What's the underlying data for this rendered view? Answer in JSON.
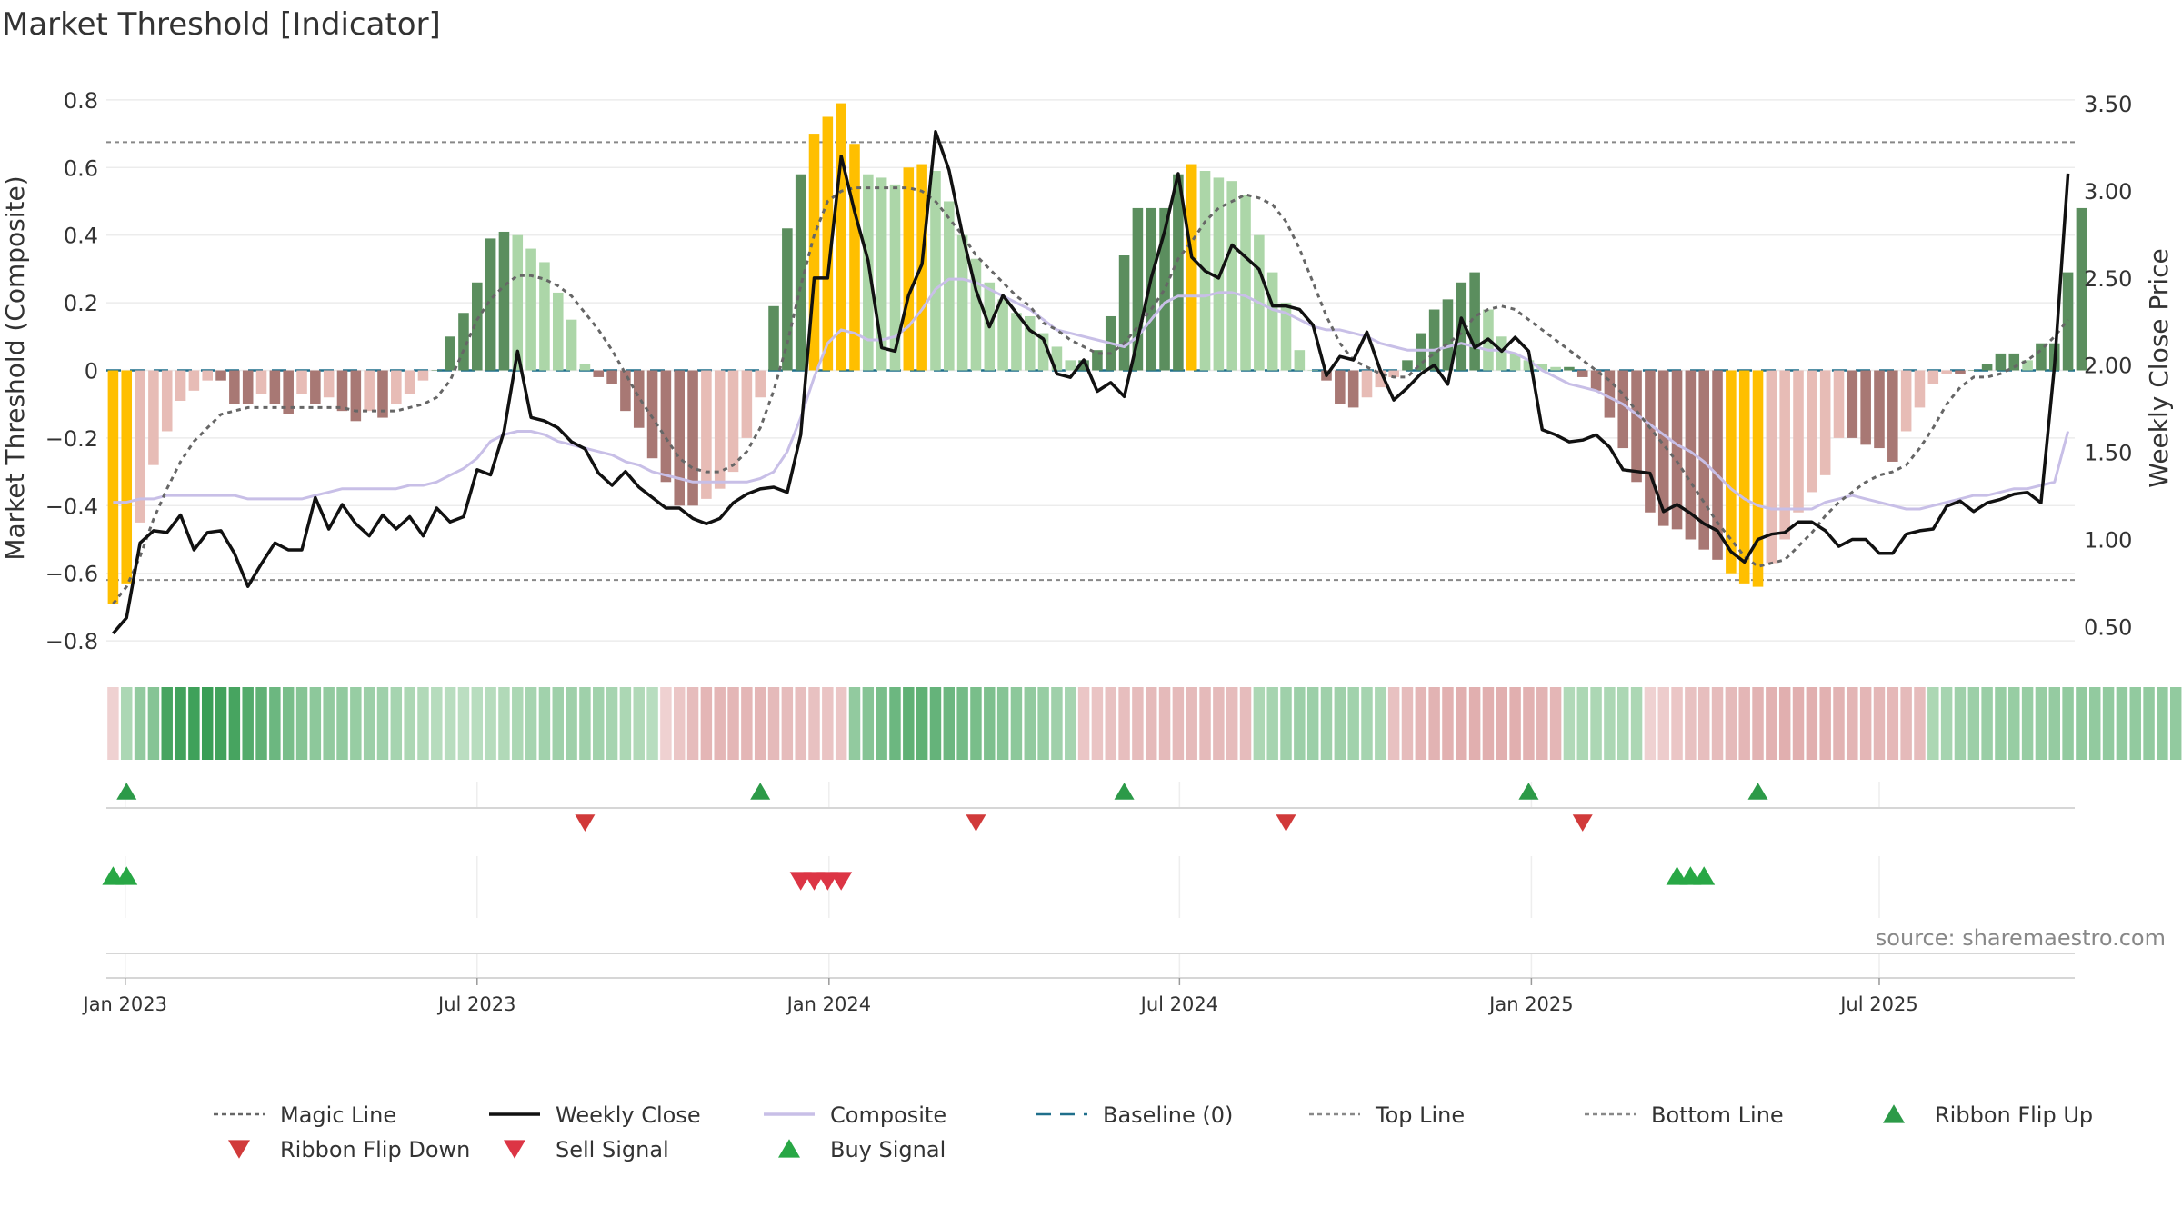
{
  "chart_data": {
    "type": "bar",
    "title": "Market Threshold [Indicator]",
    "ylabel": "Market Threshold (Composite)",
    "y2label": "Weekly Close Price",
    "ylim": [
      -0.84,
      0.84
    ],
    "y2lim": [
      0.34,
      3.6
    ],
    "yticks": [
      0.8,
      0.6,
      0.4,
      0.2,
      0,
      -0.2,
      -0.4,
      -0.6,
      -0.8
    ],
    "ytick_labels": [
      "0.8",
      "0.6",
      "0.4",
      "0.2",
      "0",
      "−0.2",
      "−0.4",
      "−0.6",
      "−0.8"
    ],
    "y2ticks": [
      3.5,
      3.0,
      2.5,
      2.0,
      1.5,
      1.0,
      0.5
    ],
    "y2tick_labels": [
      "3.50",
      "3.00",
      "2.50",
      "2.00",
      "1.50",
      "1.00",
      "0.50"
    ],
    "date_axis": {
      "start": "Dec 2022",
      "weeks": 146,
      "ticks": [
        {
          "week": 1.4,
          "label": "Jan 2023"
        },
        {
          "week": 27.5,
          "label": "Jul 2023"
        },
        {
          "week": 53.6,
          "label": "Jan 2024"
        },
        {
          "week": 79.6,
          "label": "Jul 2024"
        },
        {
          "week": 105.7,
          "label": "Jan 2025"
        },
        {
          "week": 131.5,
          "label": "Jul 2025"
        }
      ]
    },
    "reference_lines": {
      "baseline": 0,
      "top_line": 0.675,
      "bottom_line": -0.62
    },
    "bars": {
      "values": [
        -0.69,
        -0.63,
        -0.45,
        -0.28,
        -0.18,
        -0.09,
        -0.06,
        -0.03,
        -0.03,
        -0.1,
        -0.1,
        -0.07,
        -0.1,
        -0.13,
        -0.07,
        -0.1,
        -0.08,
        -0.12,
        -0.15,
        -0.12,
        -0.14,
        -0.1,
        -0.07,
        -0.03,
        0,
        0.1,
        0.17,
        0.26,
        0.39,
        0.41,
        0.4,
        0.36,
        0.32,
        0.23,
        0.15,
        0.02,
        -0.02,
        -0.04,
        -0.12,
        -0.17,
        -0.26,
        -0.33,
        -0.4,
        -0.4,
        -0.38,
        -0.35,
        -0.3,
        -0.2,
        -0.08,
        0.19,
        0.42,
        0.58,
        0.7,
        0.75,
        0.79,
        0.67,
        0.58,
        0.57,
        0.55,
        0.6,
        0.61,
        0.59,
        0.5,
        0.4,
        0.33,
        0.26,
        0.21,
        0.17,
        0.16,
        0.11,
        0.07,
        0.03,
        0.03,
        0.06,
        0.16,
        0.34,
        0.48,
        0.48,
        0.48,
        0.58,
        0.61,
        0.59,
        0.57,
        0.56,
        0.52,
        0.4,
        0.29,
        0.2,
        0.06,
        0.0,
        -0.03,
        -0.1,
        -0.11,
        -0.08,
        -0.05,
        -0.02,
        0.03,
        0.11,
        0.18,
        0.21,
        0.26,
        0.29,
        0.18,
        0.1,
        0.05,
        0.03,
        0.02,
        0.01,
        0.01,
        -0.02,
        -0.06,
        -0.14,
        -0.23,
        -0.33,
        -0.42,
        -0.46,
        -0.47,
        -0.5,
        -0.53,
        -0.56,
        -0.6,
        -0.63,
        -0.64,
        -0.57,
        -0.5,
        -0.42,
        -0.36,
        -0.31,
        -0.2,
        -0.2,
        -0.22,
        -0.23,
        -0.27,
        -0.18,
        -0.11,
        -0.04,
        -0.01,
        -0.01,
        0.0,
        0.02,
        0.05,
        0.05,
        0.03,
        0.08,
        0.08,
        0.29,
        0.48
      ],
      "colors": {
        "strong_positive": "#5b8e5e",
        "weak_positive": "#acd6a8",
        "strong_negative": "#a87874",
        "weak_negative": "#e7bcb6",
        "extreme": "#ffbf00"
      }
    },
    "series": [
      {
        "name": "Weekly Close",
        "axis": "right",
        "color": "#111111",
        "values": [
          0.46,
          0.55,
          0.98,
          1.05,
          1.04,
          1.14,
          0.94,
          1.04,
          1.05,
          0.92,
          0.73,
          0.86,
          0.98,
          0.94,
          0.94,
          1.24,
          1.06,
          1.2,
          1.09,
          1.02,
          1.14,
          1.06,
          1.13,
          1.02,
          1.18,
          1.1,
          1.13,
          1.4,
          1.37,
          1.62,
          2.08,
          1.7,
          1.68,
          1.64,
          1.56,
          1.52,
          1.38,
          1.31,
          1.39,
          1.3,
          1.24,
          1.18,
          1.18,
          1.12,
          1.09,
          1.12,
          1.21,
          1.26,
          1.29,
          1.3,
          1.27,
          1.6,
          2.5,
          2.5,
          3.2,
          2.88,
          2.6,
          2.1,
          2.08,
          2.4,
          2.58,
          3.34,
          3.12,
          2.75,
          2.43,
          2.22,
          2.4,
          2.3,
          2.2,
          2.15,
          1.95,
          1.93,
          2.03,
          1.85,
          1.9,
          1.82,
          2.15,
          2.5,
          2.77,
          3.1,
          2.62,
          2.54,
          2.5,
          2.69,
          2.62,
          2.55,
          2.34,
          2.34,
          2.32,
          2.23,
          1.94,
          2.05,
          2.03,
          2.19,
          1.97,
          1.8,
          1.87,
          1.95,
          2.0,
          1.89,
          2.27,
          2.1,
          2.15,
          2.08,
          2.16,
          2.08,
          1.63,
          1.6,
          1.56,
          1.57,
          1.6,
          1.53,
          1.4,
          1.39,
          1.38,
          1.16,
          1.2,
          1.15,
          1.09,
          1.05,
          0.93,
          0.87,
          1.0,
          1.03,
          1.04,
          1.1,
          1.1,
          1.05,
          0.96,
          1.0,
          1.0,
          0.92,
          0.92,
          1.03,
          1.05,
          1.06,
          1.19,
          1.22,
          1.16,
          1.21,
          1.23,
          1.26,
          1.27,
          1.21,
          2.0,
          3.1
        ]
      },
      {
        "name": "Composite",
        "axis": "left",
        "color": "#c8bfe7",
        "values": [
          -0.39,
          -0.39,
          -0.38,
          -0.38,
          -0.37,
          -0.37,
          -0.37,
          -0.37,
          -0.37,
          -0.37,
          -0.38,
          -0.38,
          -0.38,
          -0.38,
          -0.38,
          -0.37,
          -0.36,
          -0.35,
          -0.35,
          -0.35,
          -0.35,
          -0.35,
          -0.34,
          -0.34,
          -0.33,
          -0.31,
          -0.29,
          -0.26,
          -0.21,
          -0.19,
          -0.18,
          -0.18,
          -0.19,
          -0.21,
          -0.22,
          -0.23,
          -0.24,
          -0.25,
          -0.27,
          -0.28,
          -0.3,
          -0.31,
          -0.32,
          -0.33,
          -0.33,
          -0.33,
          -0.33,
          -0.33,
          -0.32,
          -0.3,
          -0.24,
          -0.14,
          -0.02,
          0.08,
          0.12,
          0.11,
          0.09,
          0.09,
          0.1,
          0.13,
          0.18,
          0.24,
          0.27,
          0.27,
          0.26,
          0.24,
          0.22,
          0.2,
          0.18,
          0.15,
          0.12,
          0.11,
          0.1,
          0.09,
          0.08,
          0.07,
          0.1,
          0.15,
          0.2,
          0.22,
          0.22,
          0.22,
          0.23,
          0.23,
          0.22,
          0.2,
          0.18,
          0.17,
          0.15,
          0.13,
          0.12,
          0.12,
          0.11,
          0.1,
          0.08,
          0.07,
          0.06,
          0.06,
          0.06,
          0.07,
          0.08,
          0.07,
          0.06,
          0.06,
          0.05,
          0.03,
          0.0,
          -0.02,
          -0.04,
          -0.05,
          -0.06,
          -0.08,
          -0.1,
          -0.13,
          -0.16,
          -0.19,
          -0.22,
          -0.24,
          -0.27,
          -0.31,
          -0.35,
          -0.38,
          -0.4,
          -0.41,
          -0.41,
          -0.41,
          -0.41,
          -0.39,
          -0.38,
          -0.37,
          -0.38,
          -0.39,
          -0.4,
          -0.41,
          -0.41,
          -0.4,
          -0.39,
          -0.38,
          -0.37,
          -0.37,
          -0.36,
          -0.35,
          -0.35,
          -0.34,
          -0.33,
          -0.18
        ]
      },
      {
        "name": "Magic Line",
        "axis": "left",
        "color": "#666666",
        "values": [
          -0.69,
          -0.64,
          -0.55,
          -0.44,
          -0.35,
          -0.27,
          -0.21,
          -0.17,
          -0.13,
          -0.12,
          -0.11,
          -0.11,
          -0.11,
          -0.11,
          -0.11,
          -0.11,
          -0.11,
          -0.11,
          -0.12,
          -0.12,
          -0.12,
          -0.12,
          -0.11,
          -0.1,
          -0.08,
          -0.03,
          0.06,
          0.15,
          0.21,
          0.25,
          0.28,
          0.28,
          0.27,
          0.25,
          0.22,
          0.17,
          0.12,
          0.06,
          -0.01,
          -0.08,
          -0.14,
          -0.2,
          -0.26,
          -0.29,
          -0.3,
          -0.3,
          -0.28,
          -0.24,
          -0.17,
          -0.06,
          0.08,
          0.25,
          0.4,
          0.5,
          0.53,
          0.54,
          0.54,
          0.54,
          0.54,
          0.54,
          0.53,
          0.5,
          0.45,
          0.4,
          0.34,
          0.3,
          0.26,
          0.22,
          0.19,
          0.14,
          0.12,
          0.09,
          0.07,
          0.05,
          0.05,
          0.08,
          0.13,
          0.18,
          0.24,
          0.33,
          0.38,
          0.44,
          0.48,
          0.5,
          0.52,
          0.51,
          0.49,
          0.44,
          0.36,
          0.26,
          0.16,
          0.08,
          0.03,
          0.01,
          -0.01,
          -0.02,
          -0.02,
          0.02,
          0.05,
          0.08,
          0.11,
          0.16,
          0.18,
          0.19,
          0.18,
          0.15,
          0.12,
          0.09,
          0.06,
          0.03,
          0.0,
          -0.03,
          -0.07,
          -0.12,
          -0.17,
          -0.22,
          -0.27,
          -0.33,
          -0.39,
          -0.45,
          -0.5,
          -0.55,
          -0.58,
          -0.57,
          -0.56,
          -0.52,
          -0.48,
          -0.43,
          -0.39,
          -0.36,
          -0.33,
          -0.31,
          -0.3,
          -0.28,
          -0.23,
          -0.17,
          -0.1,
          -0.05,
          -0.02,
          -0.02,
          -0.01,
          0.01,
          0.03,
          0.06,
          0.1,
          0.15
        ]
      }
    ],
    "ribbon": {
      "label": "Ribbon",
      "values": [
        -0.1,
        0.2,
        0.3,
        0.35,
        0.6,
        0.62,
        0.63,
        0.65,
        0.62,
        0.6,
        0.55,
        0.5,
        0.45,
        0.4,
        0.35,
        0.32,
        0.3,
        0.3,
        0.28,
        0.26,
        0.25,
        0.22,
        0.2,
        0.18,
        0.16,
        0.15,
        0.14,
        0.15,
        0.16,
        0.18,
        0.2,
        0.22,
        0.24,
        0.25,
        0.25,
        0.25,
        0.24,
        0.22,
        0.2,
        0.18,
        0.15,
        -0.1,
        -0.2,
        -0.3,
        -0.35,
        -0.35,
        -0.35,
        -0.35,
        -0.35,
        -0.32,
        -0.3,
        -0.28,
        -0.25,
        -0.22,
        -0.2,
        0.3,
        0.35,
        0.4,
        0.45,
        0.5,
        0.5,
        0.48,
        0.45,
        0.42,
        0.4,
        0.38,
        0.35,
        0.32,
        0.3,
        0.28,
        0.25,
        0.22,
        -0.2,
        -0.22,
        -0.25,
        -0.28,
        -0.3,
        -0.32,
        -0.32,
        -0.32,
        -0.32,
        -0.32,
        -0.32,
        -0.3,
        -0.3,
        0.2,
        0.22,
        0.25,
        0.26,
        0.26,
        0.25,
        0.25,
        0.24,
        0.22,
        0.2,
        -0.25,
        -0.3,
        -0.35,
        -0.38,
        -0.4,
        -0.42,
        -0.42,
        -0.42,
        -0.42,
        -0.42,
        -0.4,
        -0.38,
        -0.35,
        0.18,
        0.2,
        0.2,
        0.2,
        0.2,
        0.2,
        -0.1,
        -0.15,
        -0.2,
        -0.25,
        -0.28,
        -0.3,
        -0.32,
        -0.35,
        -0.38,
        -0.4,
        -0.42,
        -0.42,
        -0.42,
        -0.4,
        -0.38,
        -0.36,
        -0.35,
        -0.34,
        -0.33,
        -0.32,
        -0.3,
        0.2,
        0.22,
        0.25,
        0.26,
        0.27,
        0.28,
        0.28,
        0.28,
        0.28,
        0.29,
        0.3,
        0.3,
        0.3,
        0.3,
        0.3,
        0.3,
        0.3,
        0.3,
        0.3,
        0.3
      ]
    },
    "markers": {
      "ribbon_flip_up": [
        1,
        48,
        75,
        105,
        122
      ],
      "ribbon_flip_down": [
        35,
        64,
        87,
        109
      ],
      "buy_signal": [
        0,
        1,
        116,
        117,
        118
      ],
      "sell_signal": [
        51,
        52,
        53,
        54
      ]
    },
    "legend": [
      {
        "label": "Magic Line",
        "kind": "dotted-line",
        "color": "#666666"
      },
      {
        "label": "Weekly Close",
        "kind": "solid-line",
        "color": "#111111"
      },
      {
        "label": "Composite",
        "kind": "solid-line",
        "color": "#c8bfe7"
      },
      {
        "label": "Baseline (0)",
        "kind": "dashed-line",
        "color": "#1f6f8b"
      },
      {
        "label": "Top Line",
        "kind": "dotted-line",
        "color": "#888888"
      },
      {
        "label": "Bottom Line",
        "kind": "dotted-line",
        "color": "#888888"
      },
      {
        "label": "Ribbon Flip Up",
        "kind": "triangle-up",
        "color": "#2c9a48"
      },
      {
        "label": "Ribbon Flip Down",
        "kind": "triangle-down",
        "color": "#d13a3a"
      },
      {
        "label": "Sell Signal",
        "kind": "triangle-down",
        "color": "#dc3545"
      },
      {
        "label": "Buy Signal",
        "kind": "triangle-up",
        "color": "#28a745"
      }
    ],
    "source": "source: sharemaestro.com"
  }
}
